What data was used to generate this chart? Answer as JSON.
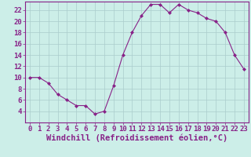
{
  "x": [
    0,
    1,
    2,
    3,
    4,
    5,
    6,
    7,
    8,
    9,
    10,
    11,
    12,
    13,
    14,
    15,
    16,
    17,
    18,
    19,
    20,
    21,
    22,
    23
  ],
  "y": [
    10,
    10,
    9,
    7,
    6,
    5,
    5,
    3.5,
    4,
    8.5,
    14,
    18,
    21,
    23,
    23,
    21.5,
    23,
    22,
    21.5,
    20.5,
    20,
    18,
    14,
    11.5
  ],
  "line_color": "#882288",
  "marker_color": "#882288",
  "bg_color": "#cceee8",
  "grid_color": "#aacccc",
  "xlabel": "Windchill (Refroidissement éolien,°C)",
  "ylabel": "",
  "xlim": [
    -0.5,
    23.5
  ],
  "ylim": [
    2.0,
    23.5
  ],
  "yticks": [
    4,
    6,
    8,
    10,
    12,
    14,
    16,
    18,
    20,
    22
  ],
  "xticks": [
    0,
    1,
    2,
    3,
    4,
    5,
    6,
    7,
    8,
    9,
    10,
    11,
    12,
    13,
    14,
    15,
    16,
    17,
    18,
    19,
    20,
    21,
    22,
    23
  ],
  "tick_color": "#882288",
  "spine_color": "#882288",
  "xlabel_color": "#882288",
  "tick_fontsize": 6.5,
  "xlabel_fontsize": 7.5
}
